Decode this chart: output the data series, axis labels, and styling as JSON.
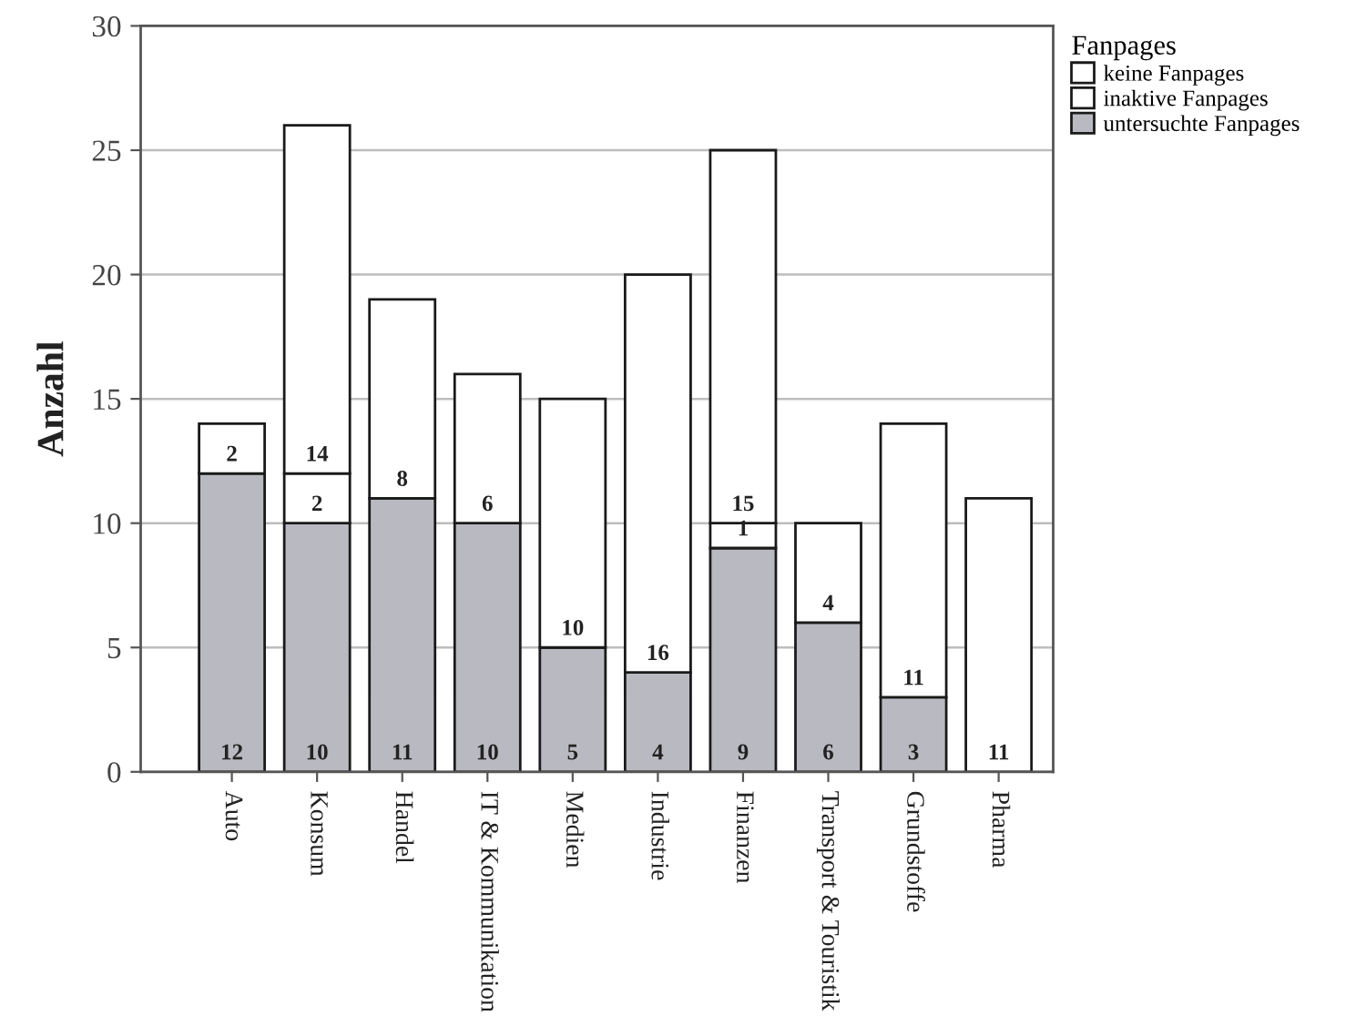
{
  "chart_data": {
    "type": "bar",
    "stacked": true,
    "categories": [
      "Auto",
      "Konsum",
      "Handel",
      "IT & Kommunikation",
      "Medien",
      "Industrie",
      "Finanzen",
      "Transport & Touristik",
      "Grundstoffe",
      "Pharma"
    ],
    "series": [
      {
        "name": "untersuchte Fanpages",
        "color": "#b9b9c1",
        "values": [
          12,
          10,
          11,
          10,
          5,
          4,
          9,
          6,
          3,
          null
        ]
      },
      {
        "name": "inaktive Fanpages",
        "color": "#ffffff",
        "values": [
          null,
          2,
          null,
          null,
          null,
          null,
          1,
          null,
          null,
          null
        ]
      },
      {
        "name": "keine Fanpages",
        "color": "#ffffff",
        "values": [
          2,
          14,
          8,
          6,
          10,
          16,
          15,
          4,
          11,
          11
        ]
      }
    ],
    "ylabel": "Anzahl",
    "legend_title": "Fanpages",
    "ylim": [
      0,
      30
    ],
    "yticks": [
      0,
      5,
      10,
      15,
      20,
      25,
      30
    ],
    "grid": "y",
    "legend": "top right",
    "data_labels": true
  }
}
